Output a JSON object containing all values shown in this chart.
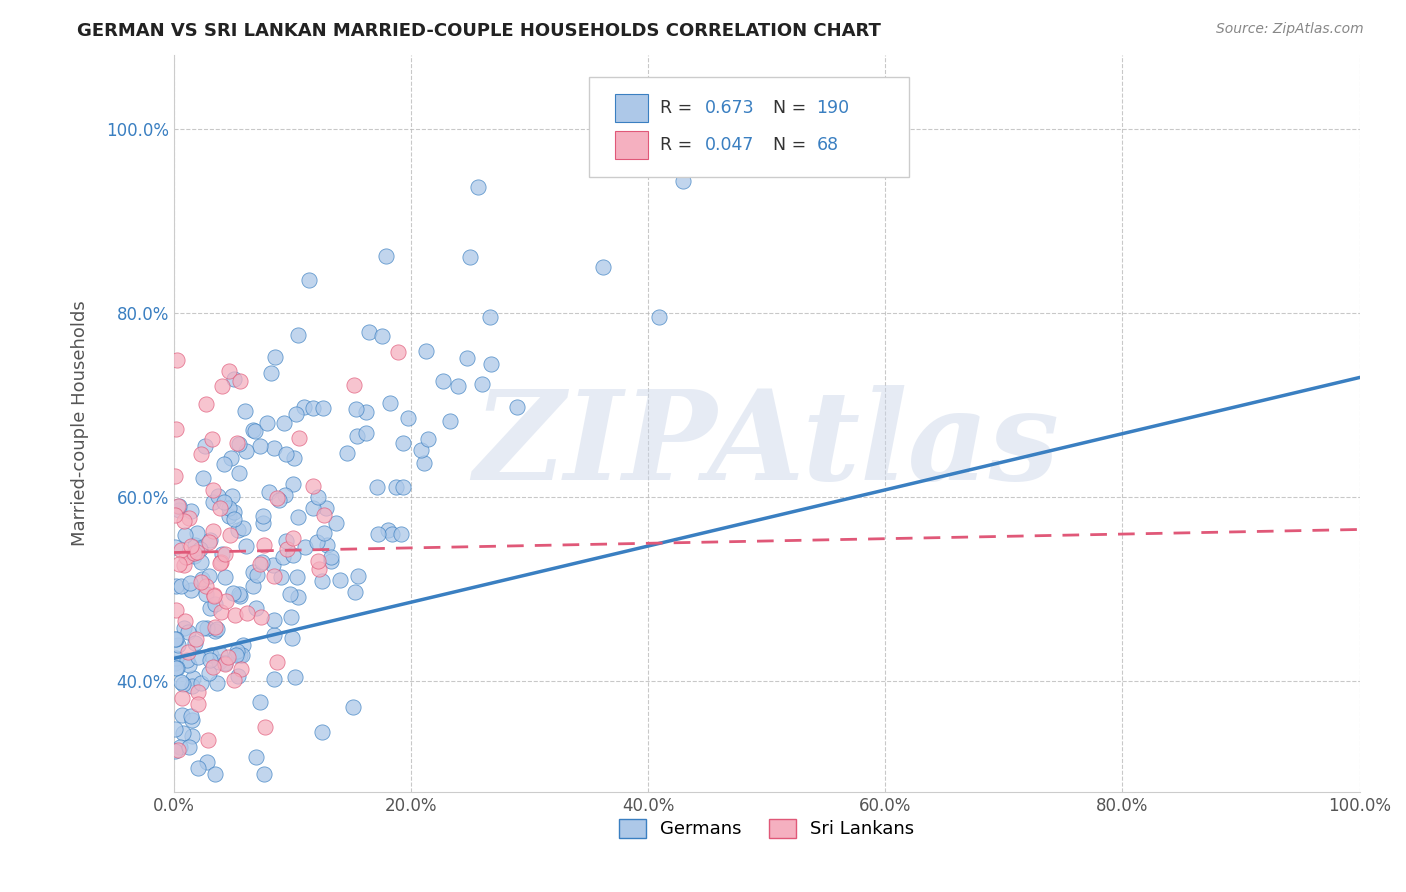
{
  "title": "GERMAN VS SRI LANKAN MARRIED-COUPLE HOUSEHOLDS CORRELATION CHART",
  "source": "Source: ZipAtlas.com",
  "ylabel": "Married-couple Households",
  "xlim": [
    0.0,
    1.0
  ],
  "ylim": [
    0.28,
    1.08
  ],
  "german_R": 0.673,
  "german_N": 190,
  "srilankan_R": 0.047,
  "srilankan_N": 68,
  "german_color": "#adc8e8",
  "srilankan_color": "#f5b0c0",
  "german_line_color": "#3a7fc1",
  "srilankan_line_color": "#e05878",
  "watermark": "ZIPAtlas",
  "background_color": "#ffffff",
  "grid_color": "#bbbbbb",
  "xticks": [
    0.0,
    0.2,
    0.4,
    0.6,
    0.8,
    1.0
  ],
  "yticks": [
    0.4,
    0.6,
    0.8,
    1.0
  ],
  "xtick_labels": [
    "0.0%",
    "20.0%",
    "40.0%",
    "60.0%",
    "80.0%",
    "100.0%"
  ],
  "ytick_labels": [
    "40.0%",
    "60.0%",
    "80.0%",
    "100.0%"
  ]
}
